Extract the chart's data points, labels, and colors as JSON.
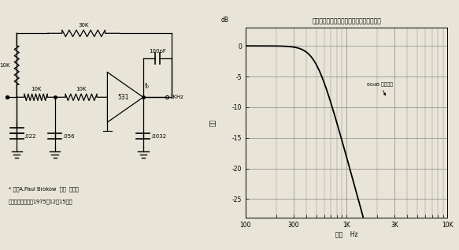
{
  "title_right": "三极点有源滤波器的巴特沃斯最大平坦响应",
  "xlabel": "频率    Hz",
  "ylabel_top": "dB",
  "ylabel_mid": "衰减",
  "annotation": "60dB 山度斜率",
  "freq_ticks": [
    100,
    300,
    1000,
    3000,
    10000
  ],
  "freq_tick_labels": [
    "100",
    "300",
    "1K",
    "3K",
    "10K"
  ],
  "db_ticks": [
    0,
    -5,
    -10,
    -15,
    -20,
    -25
  ],
  "ylim": [
    -28,
    3
  ],
  "bg_color": "#e8e4d8",
  "grid_color": "#888888",
  "line_color": "#000000",
  "caption_line1": "参考A.Paul Brokow  简化 三极点",
  "caption_line2": "有源滤波器设计，1975年12月15日版",
  "fc": 500,
  "poles": 3
}
